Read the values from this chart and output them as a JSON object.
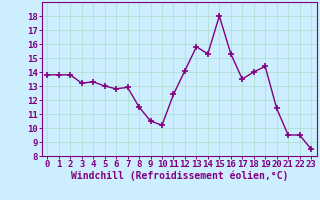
{
  "x": [
    0,
    1,
    2,
    3,
    4,
    5,
    6,
    7,
    8,
    9,
    10,
    11,
    12,
    13,
    14,
    15,
    16,
    17,
    18,
    19,
    20,
    21,
    22,
    23
  ],
  "y": [
    13.8,
    13.8,
    13.8,
    13.2,
    13.3,
    13.0,
    12.8,
    12.9,
    11.5,
    10.5,
    10.2,
    12.4,
    14.1,
    15.8,
    15.3,
    18.0,
    15.3,
    13.5,
    14.0,
    14.4,
    11.4,
    9.5,
    9.5,
    8.5
  ],
  "ylim": [
    8,
    19
  ],
  "yticks": [
    8,
    9,
    10,
    11,
    12,
    13,
    14,
    15,
    16,
    17,
    18
  ],
  "xticks": [
    0,
    1,
    2,
    3,
    4,
    5,
    6,
    7,
    8,
    9,
    10,
    11,
    12,
    13,
    14,
    15,
    16,
    17,
    18,
    19,
    20,
    21,
    22,
    23
  ],
  "xlabel": "Windchill (Refroidissement éolien,°C)",
  "line_color": "#800080",
  "marker": "+",
  "marker_size": 4.0,
  "line_width": 1.0,
  "bg_color": "#cceeff",
  "grid_color": "#aaddcc",
  "tick_fontsize": 6.5,
  "xlabel_fontsize": 7.0
}
